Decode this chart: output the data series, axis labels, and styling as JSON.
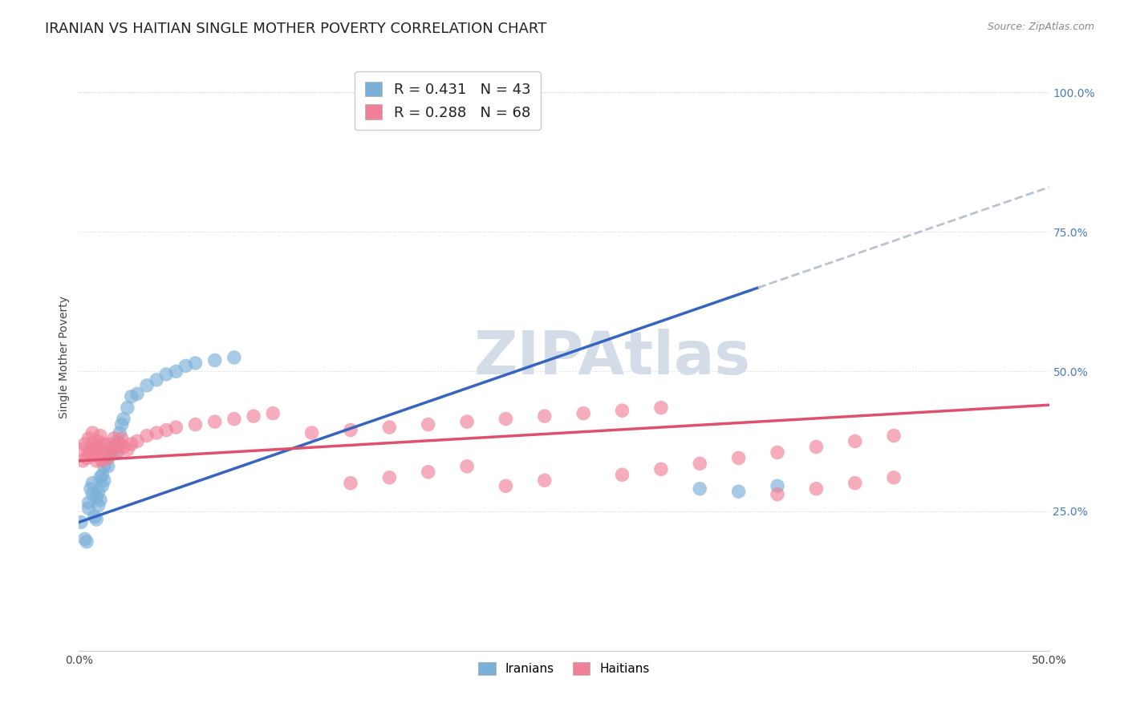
{
  "title": "IRANIAN VS HAITIAN SINGLE MOTHER POVERTY CORRELATION CHART",
  "source": "Source: ZipAtlas.com",
  "ylabel": "Single Mother Poverty",
  "xlim": [
    0.0,
    0.5
  ],
  "ylim": [
    0.0,
    1.05
  ],
  "xticks": [
    0.0,
    0.5
  ],
  "xtick_labels": [
    "0.0%",
    "50.0%"
  ],
  "yticks": [
    0.25,
    0.5,
    0.75,
    1.0
  ],
  "ytick_labels": [
    "25.0%",
    "50.0%",
    "75.0%",
    "100.0%"
  ],
  "legend_label_1": "R = 0.431   N = 43",
  "legend_label_2": "R = 0.288   N = 68",
  "iranian_color": "#7ab0d8",
  "haitian_color": "#f08098",
  "trendline_iranian_color": "#3565c0",
  "trendline_haitian_color": "#e0506e",
  "trendline_dashed_color": "#b8c4d0",
  "watermark": "ZIPAtlas",
  "watermark_color": "#d4dce8",
  "background_color": "#ffffff",
  "grid_color": "#d8d8d8",
  "title_fontsize": 13,
  "axis_label_fontsize": 10,
  "tick_fontsize": 10,
  "legend_fontsize": 13,
  "source_fontsize": 9,
  "iranian_x": [
    0.001,
    0.003,
    0.004,
    0.005,
    0.005,
    0.006,
    0.007,
    0.007,
    0.008,
    0.009,
    0.009,
    0.01,
    0.01,
    0.011,
    0.011,
    0.012,
    0.012,
    0.013,
    0.013,
    0.014,
    0.015,
    0.016,
    0.017,
    0.018,
    0.019,
    0.02,
    0.021,
    0.022,
    0.023,
    0.025,
    0.027,
    0.03,
    0.035,
    0.04,
    0.045,
    0.05,
    0.055,
    0.06,
    0.07,
    0.08,
    0.32,
    0.34,
    0.36
  ],
  "iranian_y": [
    0.23,
    0.2,
    0.195,
    0.265,
    0.255,
    0.29,
    0.28,
    0.3,
    0.24,
    0.275,
    0.235,
    0.26,
    0.285,
    0.27,
    0.31,
    0.295,
    0.315,
    0.305,
    0.33,
    0.345,
    0.33,
    0.35,
    0.36,
    0.365,
    0.355,
    0.375,
    0.39,
    0.405,
    0.415,
    0.435,
    0.455,
    0.46,
    0.475,
    0.485,
    0.495,
    0.5,
    0.51,
    0.515,
    0.52,
    0.525,
    0.29,
    0.285,
    0.295
  ],
  "haitian_x": [
    0.001,
    0.002,
    0.003,
    0.004,
    0.005,
    0.005,
    0.006,
    0.007,
    0.007,
    0.008,
    0.009,
    0.009,
    0.01,
    0.01,
    0.011,
    0.012,
    0.012,
    0.013,
    0.014,
    0.015,
    0.016,
    0.017,
    0.018,
    0.019,
    0.02,
    0.021,
    0.022,
    0.023,
    0.025,
    0.027,
    0.03,
    0.035,
    0.04,
    0.045,
    0.05,
    0.06,
    0.07,
    0.08,
    0.09,
    0.1,
    0.12,
    0.14,
    0.16,
    0.18,
    0.2,
    0.22,
    0.24,
    0.26,
    0.28,
    0.3,
    0.14,
    0.16,
    0.18,
    0.2,
    0.22,
    0.24,
    0.28,
    0.3,
    0.32,
    0.34,
    0.36,
    0.38,
    0.4,
    0.42,
    0.36,
    0.38,
    0.4,
    0.42
  ],
  "haitian_y": [
    0.36,
    0.34,
    0.37,
    0.345,
    0.38,
    0.355,
    0.36,
    0.39,
    0.37,
    0.35,
    0.365,
    0.34,
    0.375,
    0.355,
    0.385,
    0.36,
    0.34,
    0.37,
    0.355,
    0.345,
    0.37,
    0.36,
    0.38,
    0.365,
    0.355,
    0.37,
    0.38,
    0.365,
    0.36,
    0.37,
    0.375,
    0.385,
    0.39,
    0.395,
    0.4,
    0.405,
    0.41,
    0.415,
    0.42,
    0.425,
    0.39,
    0.395,
    0.4,
    0.405,
    0.41,
    0.415,
    0.42,
    0.425,
    0.43,
    0.435,
    0.3,
    0.31,
    0.32,
    0.33,
    0.295,
    0.305,
    0.315,
    0.325,
    0.335,
    0.345,
    0.355,
    0.365,
    0.375,
    0.385,
    0.28,
    0.29,
    0.3,
    0.31
  ]
}
